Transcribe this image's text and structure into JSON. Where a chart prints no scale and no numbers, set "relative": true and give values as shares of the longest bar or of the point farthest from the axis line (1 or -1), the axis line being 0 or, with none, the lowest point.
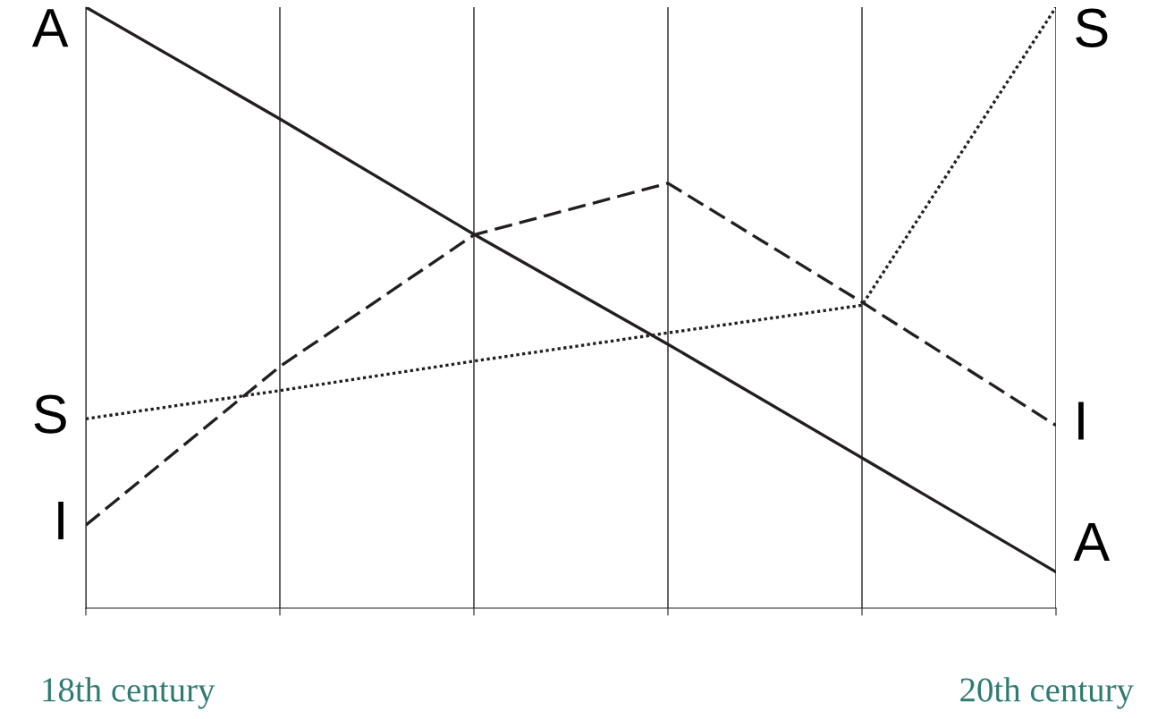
{
  "chart_data": {
    "type": "line",
    "relative": true,
    "categories": [
      null,
      null,
      null,
      null,
      null,
      null
    ],
    "series": [
      {
        "name": "A",
        "color": "#231f20",
        "line_style": "solid",
        "values": [
          1,
          0.814,
          0.622,
          0.439,
          0.25,
          0.06
        ]
      },
      {
        "name": "I",
        "color": "#231f20",
        "line_style": "dashed",
        "values": [
          0.138,
          0.402,
          0.621,
          0.707,
          0.509,
          0.304
        ]
      },
      {
        "name": "S",
        "color": "#231f20",
        "line_style": "dotted",
        "values": [
          0.315,
          0.362,
          0.411,
          0.458,
          0.504,
          1
        ]
      }
    ],
    "annotations": [
      "18th century",
      "20th century"
    ],
    "grid": "x",
    "marker": "none"
  }
}
